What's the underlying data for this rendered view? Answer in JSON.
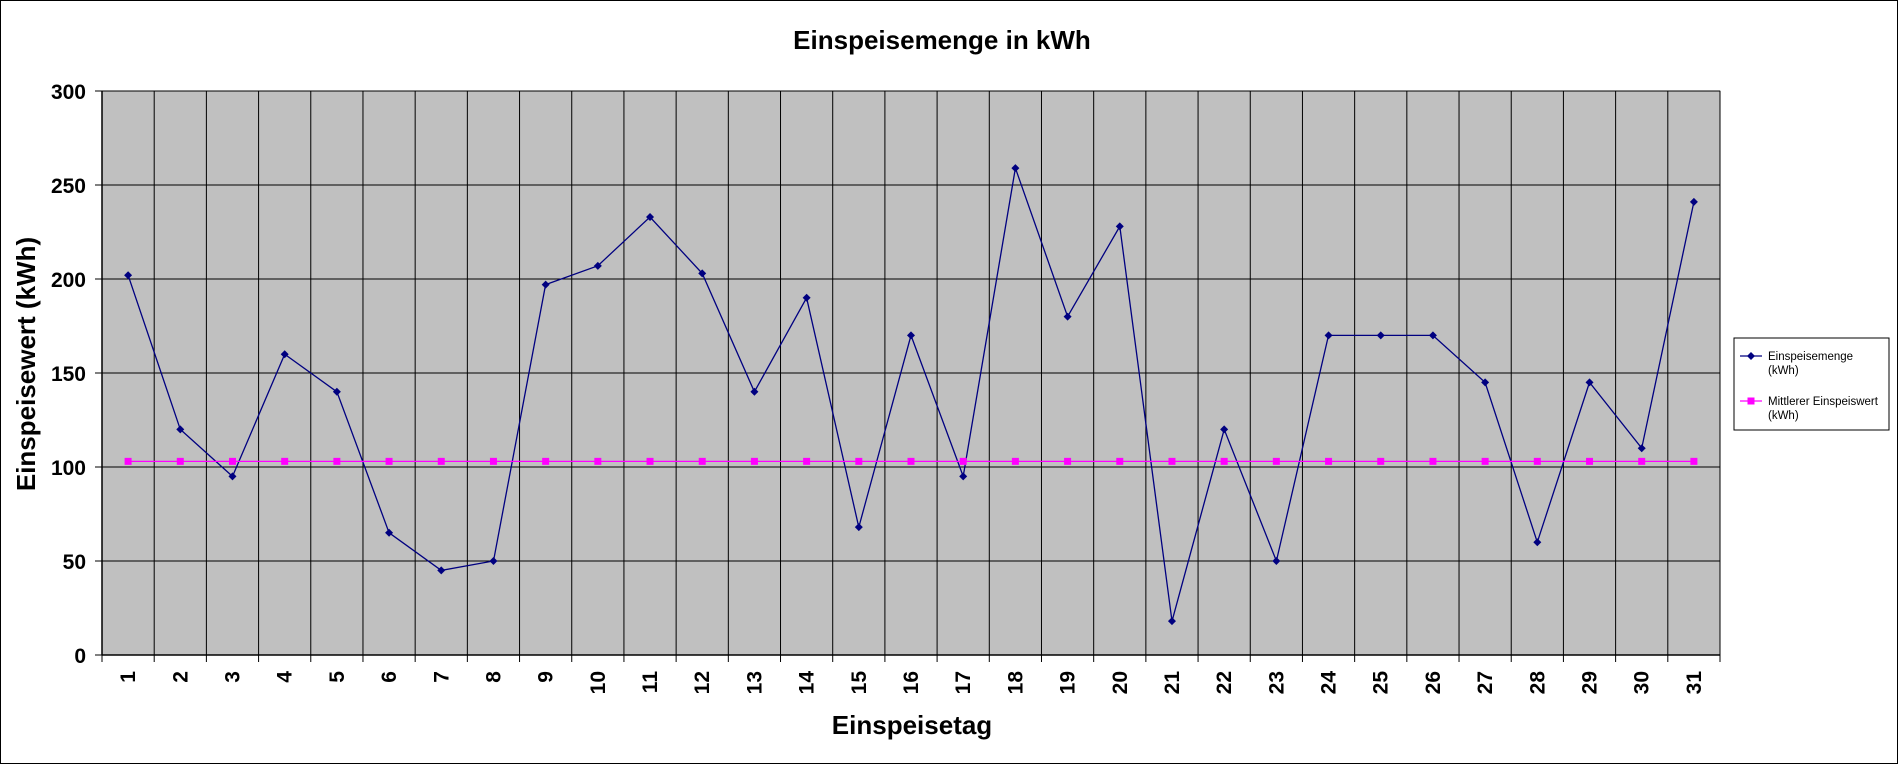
{
  "chart_data": {
    "type": "line",
    "title": "Einspeisemenge in kWh",
    "xlabel": "Einspeisetag",
    "ylabel": "Einspeisewert  (kWh)",
    "categories": [
      "1",
      "2",
      "3",
      "4",
      "5",
      "6",
      "7",
      "8",
      "9",
      "10",
      "11",
      "12",
      "13",
      "14",
      "15",
      "16",
      "17",
      "18",
      "19",
      "20",
      "21",
      "22",
      "23",
      "24",
      "25",
      "26",
      "27",
      "28",
      "29",
      "30",
      "31"
    ],
    "ylim": [
      0,
      300
    ],
    "yticks": [
      "0",
      "50",
      "100",
      "150",
      "200",
      "250",
      "300"
    ],
    "grid": true,
    "legend_position": "right",
    "series": [
      {
        "name": "Einspeisemenge (kWh)",
        "legend_lines": [
          "Einspeisemenge",
          "(kWh)"
        ],
        "color": "#000080",
        "marker": "diamond",
        "values": [
          202,
          120,
          95,
          160,
          140,
          65,
          45,
          50,
          197,
          207,
          233,
          203,
          140,
          190,
          68,
          170,
          95,
          259,
          180,
          228,
          18,
          120,
          50,
          170,
          170,
          170,
          145,
          60,
          145,
          110,
          241
        ]
      },
      {
        "name": "Mittlerer Einspeiswert (kWh)",
        "legend_lines": [
          "Mittlerer Einspeiswert",
          "(kWh)"
        ],
        "color": "#FF00FF",
        "marker": "square",
        "values": [
          103,
          103,
          103,
          103,
          103,
          103,
          103,
          103,
          103,
          103,
          103,
          103,
          103,
          103,
          103,
          103,
          103,
          103,
          103,
          103,
          103,
          103,
          103,
          103,
          103,
          103,
          103,
          103,
          103,
          103,
          103
        ]
      }
    ],
    "colors": {
      "plot_background": "#C0C0C0",
      "gridline": "#000000"
    }
  }
}
